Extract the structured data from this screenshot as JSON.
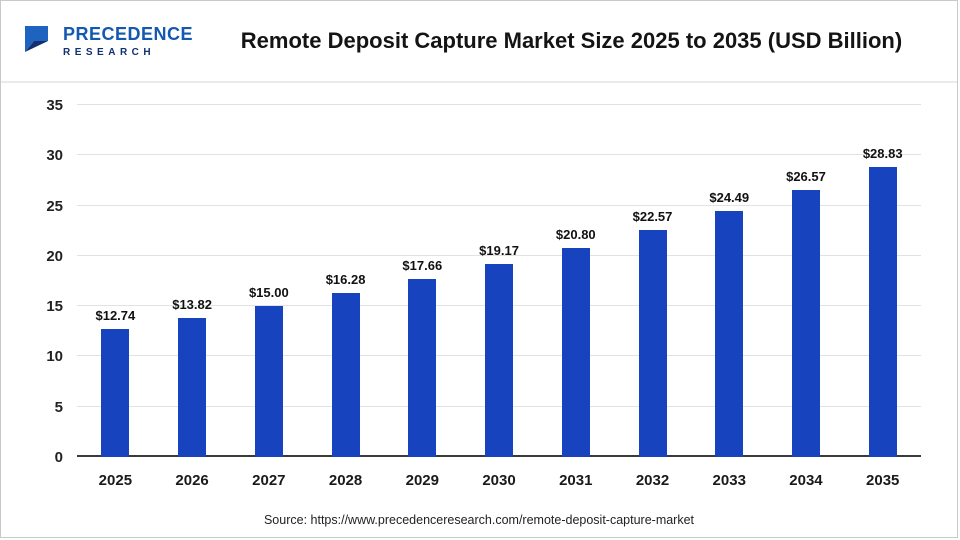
{
  "header": {
    "logo": {
      "line1": "PRECEDENCE",
      "line2": "RESEARCH",
      "color_primary": "#1558b0",
      "color_secondary": "#12306e"
    },
    "title": "Remote Deposit Capture Market Size 2025 to 2035 (USD Billion)"
  },
  "chart_data": {
    "type": "bar",
    "title": "Remote Deposit Capture Market Size 2025 to 2035 (USD Billion)",
    "categories": [
      "2025",
      "2026",
      "2027",
      "2028",
      "2029",
      "2030",
      "2031",
      "2032",
      "2033",
      "2034",
      "2035"
    ],
    "values": [
      12.74,
      13.82,
      15.0,
      16.28,
      17.66,
      19.17,
      20.8,
      22.57,
      24.49,
      26.57,
      28.83
    ],
    "value_labels": [
      "$12.74",
      "$13.82",
      "$15.00",
      "$16.28",
      "$17.66",
      "$19.17",
      "$20.80",
      "$22.57",
      "$24.49",
      "$26.57",
      "$28.83"
    ],
    "xlabel": "",
    "ylabel": "",
    "ylim": [
      0,
      35
    ],
    "yticks": [
      0,
      5,
      10,
      15,
      20,
      25,
      30,
      35
    ],
    "grid": true,
    "legend": "none",
    "bar_color": "#1843be"
  },
  "footer": {
    "source": "Source: https://www.precedenceresearch.com/remote-deposit-capture-market"
  }
}
